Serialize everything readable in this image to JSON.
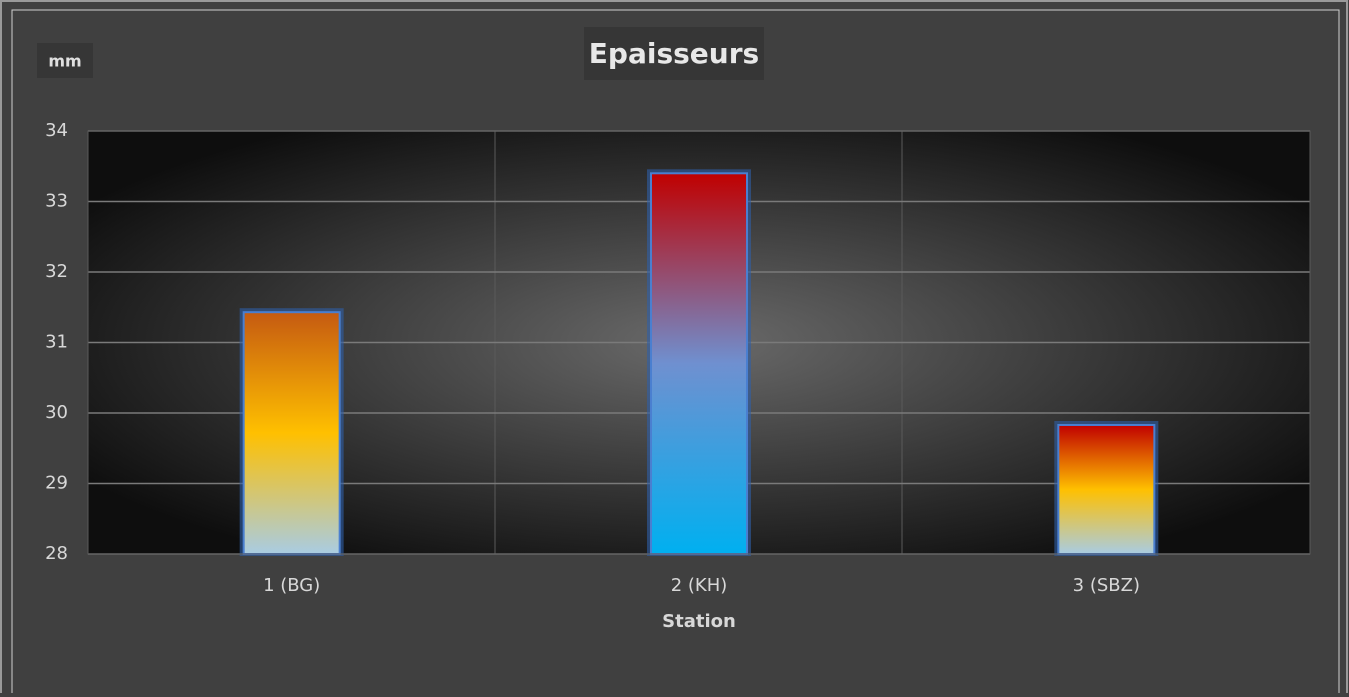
{
  "chart_data": {
    "type": "bar",
    "title": "Epaisseurs",
    "y_label": "mm",
    "x_label": "Station",
    "categories": [
      "1 (BG)",
      "2 (KH)",
      "3 (SBZ)"
    ],
    "values": [
      31.43,
      33.4,
      29.83
    ],
    "colors": [
      [
        "#c55a11",
        "#ffc000",
        "#a9cce3"
      ],
      [
        "#c00000",
        "#6f90d0",
        "#00b0f0"
      ],
      [
        "#c00000",
        "#ffc000",
        "#a9cce3"
      ]
    ],
    "ylim": [
      28,
      34
    ],
    "yticks": [
      28,
      29,
      30,
      31,
      32,
      33,
      34
    ],
    "grid": true
  }
}
